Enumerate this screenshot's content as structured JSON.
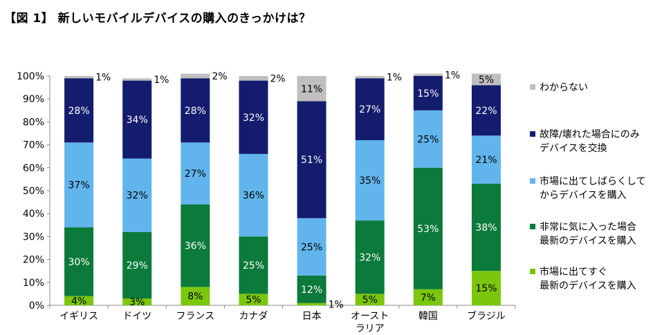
{
  "title": "【図 1】 新しいモバイルデバイスの購入のきっかけは？",
  "chart_data": {
    "type": "bar",
    "stacked": true,
    "categories": [
      "イギリス",
      "ドイツ",
      "フランス",
      "カナダ",
      "日本",
      "オースト\nラリア",
      "韓国",
      "ブラジル"
    ],
    "series": [
      {
        "name": "市場に出てすぐ\n最新のデバイスを購入",
        "color": "#7ac70c",
        "values": [
          4,
          3,
          8,
          5,
          1,
          5,
          7,
          15
        ]
      },
      {
        "name": "非常に気に入った場合\n最新のデバイスを購入",
        "color": "#0b7a3a",
        "values": [
          30,
          29,
          36,
          25,
          12,
          32,
          53,
          38
        ]
      },
      {
        "name": "市場に出てしばらくして\nからデバイスを購入",
        "color": "#62b5ec",
        "values": [
          37,
          32,
          27,
          36,
          25,
          35,
          25,
          21
        ]
      },
      {
        "name": "故障/壊れた場合にのみ\nデバイスを交換",
        "color": "#141c6e",
        "values": [
          28,
          34,
          28,
          32,
          51,
          27,
          15,
          22
        ]
      },
      {
        "name": "わからない",
        "color": "#bfbfbf",
        "values": [
          1,
          1,
          2,
          2,
          11,
          1,
          1,
          5
        ]
      }
    ],
    "ylim": [
      0,
      100
    ],
    "yticks": [
      "0%",
      "10%",
      "20%",
      "30%",
      "40%",
      "50%",
      "60%",
      "70%",
      "80%",
      "90%",
      "100%"
    ],
    "legend": "right"
  }
}
